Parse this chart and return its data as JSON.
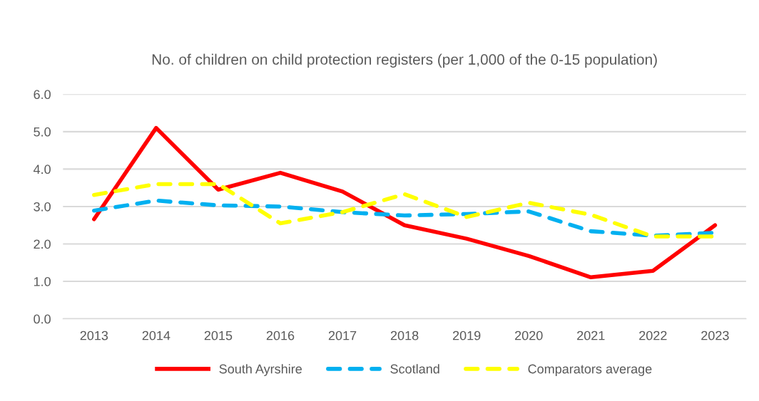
{
  "chart_data": {
    "type": "line",
    "title": "No. of children on child protection registers (per 1,000 of the 0-15 population)",
    "categories": [
      "2013",
      "2014",
      "2015",
      "2016",
      "2017",
      "2018",
      "2019",
      "2020",
      "2021",
      "2022",
      "2023"
    ],
    "series": [
      {
        "name": "South Ayrshire",
        "color": "#ff0000",
        "line_style": "solid",
        "values": [
          2.66,
          5.1,
          3.45,
          3.9,
          3.4,
          2.5,
          2.14,
          1.68,
          1.11,
          1.28,
          2.5
        ]
      },
      {
        "name": "Scotland",
        "color": "#00b0f0",
        "line_style": "dashed",
        "values": [
          2.89,
          3.16,
          3.03,
          3.0,
          2.85,
          2.76,
          2.8,
          2.87,
          2.34,
          2.22,
          2.3
        ]
      },
      {
        "name": "Comparators average",
        "color": "#ffff00",
        "line_style": "dashed",
        "values": [
          3.31,
          3.6,
          3.6,
          2.55,
          2.85,
          3.33,
          2.72,
          3.1,
          2.78,
          2.2,
          2.2
        ]
      }
    ],
    "ylim": [
      0,
      6
    ],
    "yticks": [
      {
        "value": 0,
        "label": "0.0"
      },
      {
        "value": 1,
        "label": "1.0"
      },
      {
        "value": 2,
        "label": "2.0"
      },
      {
        "value": 3,
        "label": "3.0"
      },
      {
        "value": 4,
        "label": "4.0"
      },
      {
        "value": 5,
        "label": "5.0"
      },
      {
        "value": 6,
        "label": "6.0"
      }
    ],
    "grid": "y",
    "legend": "bottom",
    "marker": "none"
  }
}
